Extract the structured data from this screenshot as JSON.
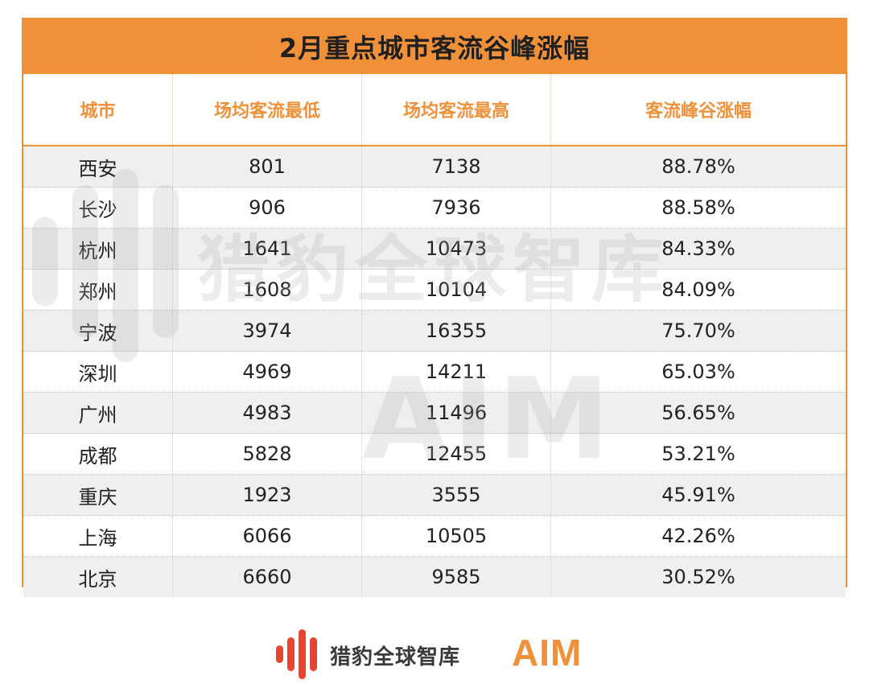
{
  "title": "2月重点城市客流谷峰涨幅",
  "columns": [
    "城市",
    "场均客流最低",
    "场均客流最高",
    "客流峰谷涨幅"
  ],
  "rows": [
    [
      "西安",
      "801",
      "7138",
      "88.78%"
    ],
    [
      "长沙",
      "906",
      "7936",
      "88.58%"
    ],
    [
      "杭州",
      "1641",
      "10473",
      "84.33%"
    ],
    [
      "郑州",
      "1608",
      "10104",
      "84.09%"
    ],
    [
      "宁波",
      "3974",
      "16355",
      "75.70%"
    ],
    [
      "深圳",
      "4969",
      "14211",
      "65.03%"
    ],
    [
      "广州",
      "4983",
      "11496",
      "56.65%"
    ],
    [
      "成都",
      "5828",
      "12455",
      "53.21%"
    ],
    [
      "重庆",
      "1923",
      "3555",
      "45.91%"
    ],
    [
      "上海",
      "6066",
      "10505",
      "42.26%"
    ],
    [
      "北京",
      "6660",
      "9585",
      "30.52%"
    ]
  ],
  "watermark": {
    "text": "猎豹全球智库",
    "aim": "AIM"
  },
  "footer": {
    "brand_text": "猎豹全球智库",
    "aim_logo": "AIM"
  },
  "colors": {
    "accent": "#f0913a",
    "row_shade": "#efefef"
  },
  "icons": {
    "brand": "cheetah-bars-logo-icon"
  }
}
